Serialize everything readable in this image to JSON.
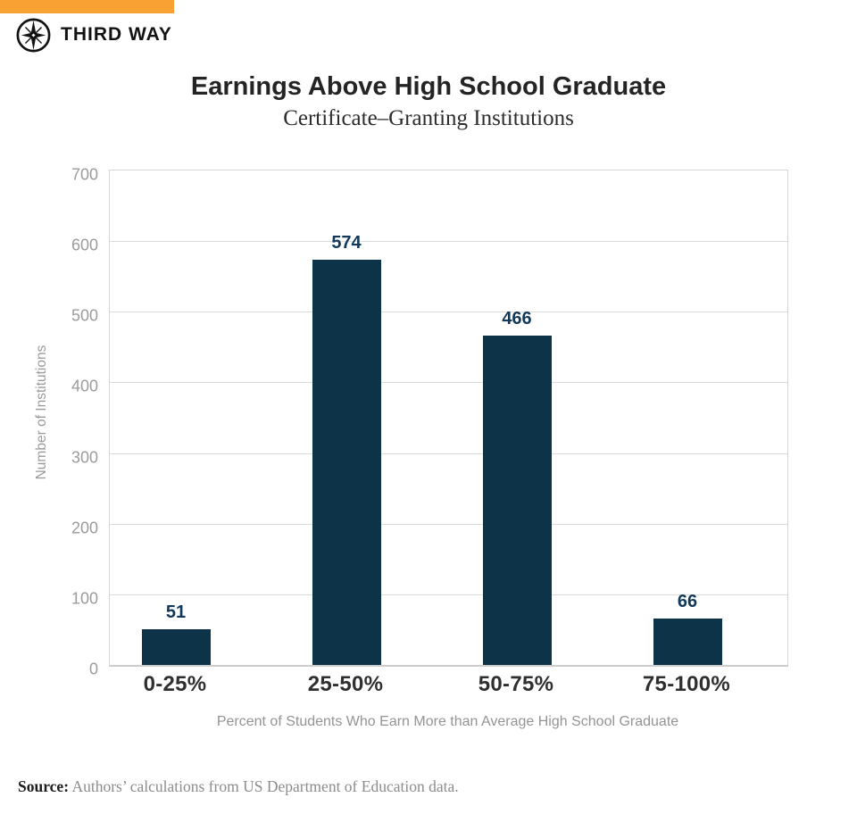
{
  "brand": {
    "name": "THIRD WAY",
    "accent_color": "#F9A233",
    "logo_icon": "compass-star-icon"
  },
  "header": {
    "title": "Earnings Above High School Graduate",
    "subtitle": "Certificate–Granting Institutions"
  },
  "chart_data": {
    "type": "bar",
    "title": "Earnings Above High School Graduate",
    "subtitle": "Certificate–Granting Institutions",
    "categories": [
      "0-25%",
      "25-50%",
      "50-75%",
      "75-100%"
    ],
    "values": [
      51,
      574,
      466,
      66
    ],
    "xlabel": "Percent of Students Who Earn More than Average High School Graduate",
    "ylabel": "Number of Institutions",
    "ylim": [
      0,
      700
    ],
    "yticks": [
      0,
      100,
      200,
      300,
      400,
      500,
      600,
      700
    ],
    "grid": true,
    "legend": "none",
    "bar_color": "#0D3348",
    "value_label_color": "#12395A",
    "gridline_color": "#dbdbdb"
  },
  "footer": {
    "source_label": "Source:",
    "source_text": " Authors’ calculations from US Department of Education data."
  }
}
